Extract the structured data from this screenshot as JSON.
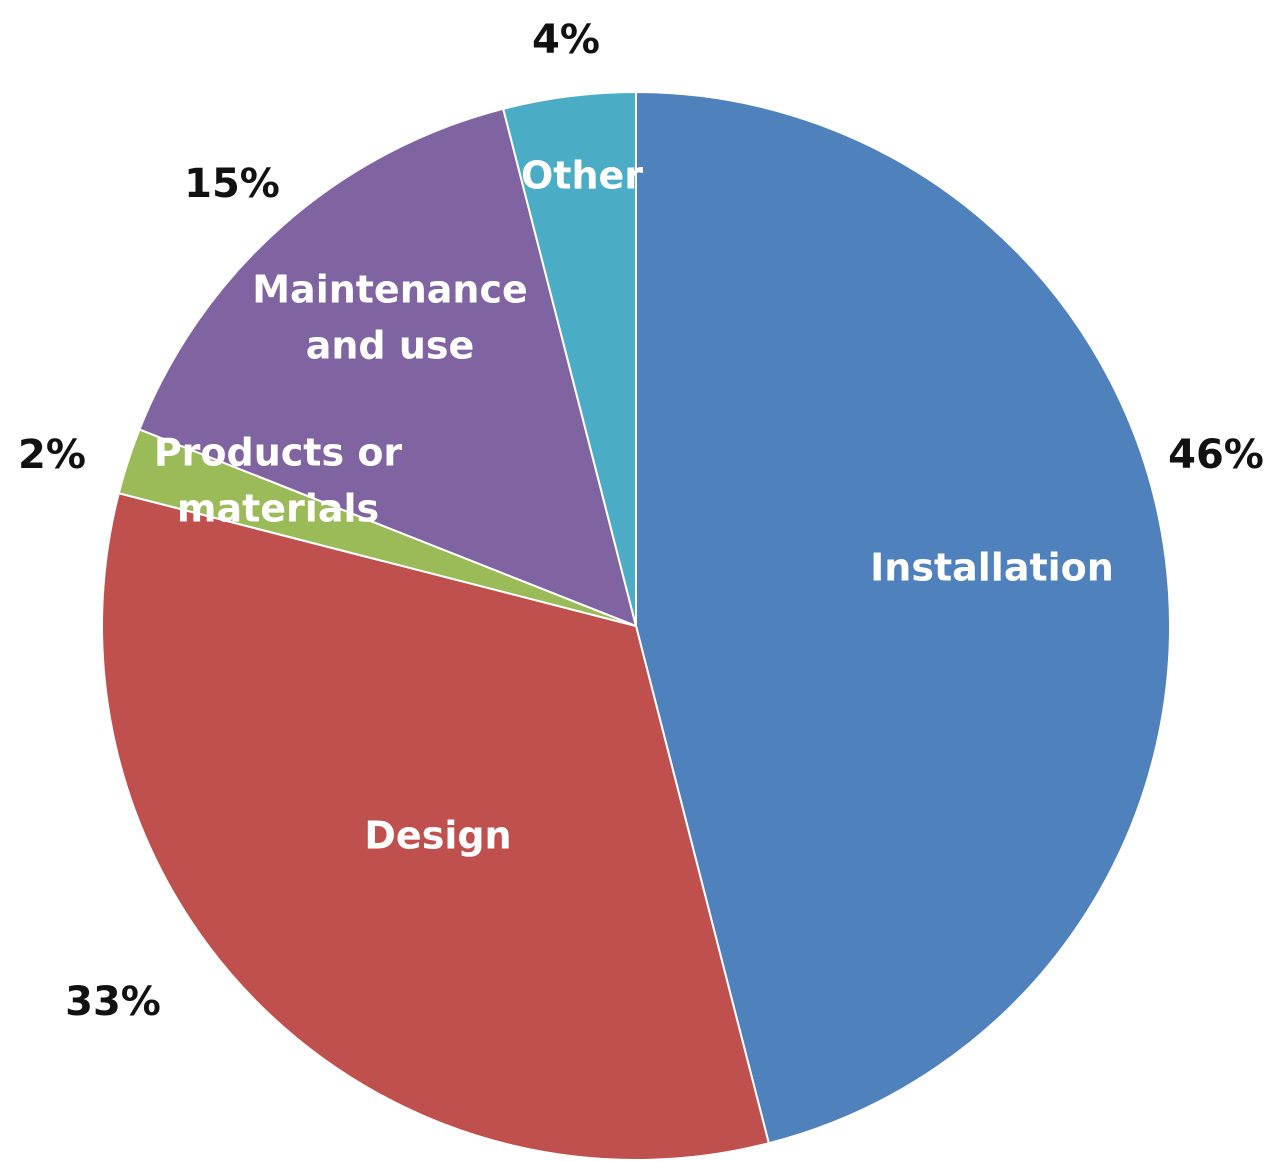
{
  "chart_data": {
    "type": "pie",
    "slices": [
      {
        "label": [
          "Installation"
        ],
        "value": 46,
        "value_label": "46%",
        "color": "#4F81BD"
      },
      {
        "label": [
          "Design"
        ],
        "value": 33,
        "value_label": "33%",
        "color": "#C0504D"
      },
      {
        "label": [
          "Products or",
          "materials"
        ],
        "value": 2,
        "value_label": "2%",
        "color": "#9BBB59"
      },
      {
        "label": [
          "Maintenance",
          "and use"
        ],
        "value": 15,
        "value_label": "15%",
        "color": "#8064A2"
      },
      {
        "label": [
          "Other"
        ],
        "value": 4,
        "value_label": "4%",
        "color": "#4BACC6"
      }
    ]
  }
}
